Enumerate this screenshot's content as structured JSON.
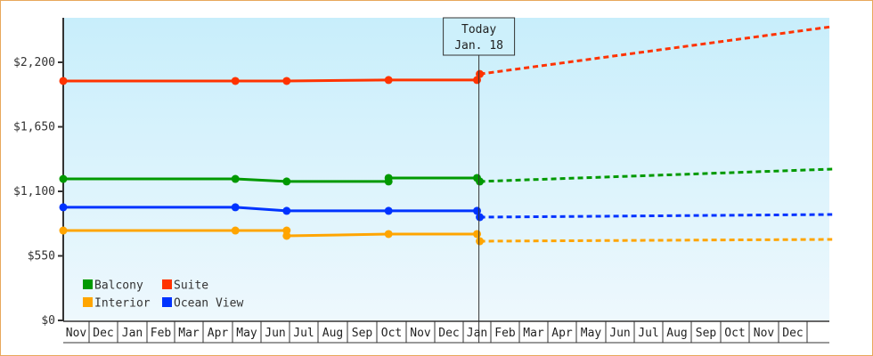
{
  "chart_data": {
    "type": "line",
    "title": "",
    "xlabel": "",
    "ylabel": "",
    "ylim": [
      0,
      2500
    ],
    "yticks": [
      0,
      550,
      1100,
      1650,
      2200
    ],
    "ytick_labels": [
      "$0",
      "$550",
      "$1,100",
      "$1,650",
      "$2,200"
    ],
    "x_months": [
      "Nov",
      "Dec",
      "Jan",
      "Feb",
      "Mar",
      "Apr",
      "May",
      "Jun",
      "Jul",
      "Aug",
      "Sep",
      "Oct",
      "Nov",
      "Dec",
      "Jan",
      "Feb",
      "Mar",
      "Apr",
      "May",
      "Jun",
      "Jul",
      "Aug",
      "Sep",
      "Oct",
      "Nov",
      "Dec"
    ],
    "grid": false,
    "legend_position": "lower-left",
    "marker": {
      "label_line1": "Today",
      "label_line2": "Jan. 18",
      "x_index": 14.6
    },
    "series": [
      {
        "name": "Balcony",
        "color": "#009900",
        "historical": [
          [
            0,
            1206
          ],
          [
            6.1,
            1206
          ],
          [
            7.9,
            1184
          ],
          [
            11.4,
            1184
          ],
          [
            11.4,
            1214
          ],
          [
            14.5,
            1214
          ],
          [
            14.6,
            1184
          ]
        ],
        "projected": [
          [
            14.6,
            1184
          ],
          [
            26.6,
            1290
          ]
        ]
      },
      {
        "name": "Suite",
        "color": "#ff3300",
        "historical": [
          [
            0,
            2041
          ],
          [
            6.1,
            2041
          ],
          [
            7.9,
            2041
          ],
          [
            11.4,
            2049
          ],
          [
            14.5,
            2049
          ],
          [
            14.6,
            2100
          ]
        ],
        "projected": [
          [
            14.6,
            2100
          ],
          [
            26.6,
            2504
          ]
        ]
      },
      {
        "name": "Interior",
        "color": "#ffa500",
        "historical": [
          [
            0,
            766
          ],
          [
            6.1,
            766
          ],
          [
            7.9,
            766
          ],
          [
            7.9,
            721
          ],
          [
            11.4,
            736
          ],
          [
            14.5,
            736
          ],
          [
            14.6,
            675
          ]
        ],
        "projected": [
          [
            14.6,
            675
          ],
          [
            26.6,
            690
          ]
        ]
      },
      {
        "name": "Ocean View",
        "color": "#0033ff",
        "historical": [
          [
            0,
            964
          ],
          [
            6.1,
            964
          ],
          [
            7.9,
            934
          ],
          [
            11.4,
            934
          ],
          [
            14.5,
            934
          ],
          [
            14.6,
            880
          ]
        ],
        "projected": [
          [
            14.6,
            880
          ],
          [
            26.6,
            903
          ]
        ]
      }
    ]
  },
  "legend": [
    {
      "label": "Balcony",
      "color": "#009900"
    },
    {
      "label": "Suite",
      "color": "#ff3300"
    },
    {
      "label": "Interior",
      "color": "#ffa500"
    },
    {
      "label": "Ocean View",
      "color": "#0033ff"
    }
  ],
  "today_label": {
    "line1": "Today",
    "line2": "Jan. 18"
  },
  "colors": {
    "frame_border": "#e8a85c",
    "plot_bg_top": "#c8eefb",
    "plot_bg_bottom": "#eef8fd",
    "axis": "#333333"
  }
}
